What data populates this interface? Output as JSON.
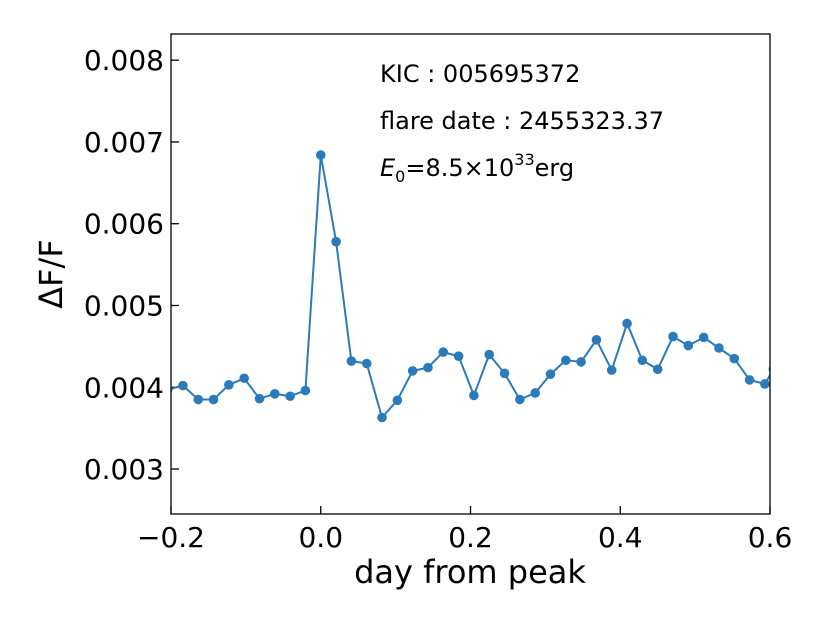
{
  "chart_data": {
    "type": "line",
    "xlabel": "day from peak",
    "ylabel": "ΔF/F",
    "xlim": [
      -0.2,
      0.6
    ],
    "ylim": [
      0.00245,
      0.00832
    ],
    "xticks": [
      -0.2,
      0.0,
      0.2,
      0.4,
      0.6
    ],
    "xtick_labels": [
      "−0.2",
      "0.0",
      "0.2",
      "0.4",
      "0.6"
    ],
    "yticks": [
      0.003,
      0.004,
      0.005,
      0.006,
      0.007,
      0.008
    ],
    "ytick_labels": [
      "0.003",
      "0.004",
      "0.005",
      "0.006",
      "0.007",
      "0.008"
    ],
    "grid": false,
    "color": "#2b7bba",
    "annotations": {
      "kic": "KIC : 005695372",
      "flare_date": "flare date : 2455323.37",
      "energy_symbol": "E",
      "energy_subscript": "0",
      "energy_value": "=8.5×10",
      "energy_exponent": "33",
      "energy_unit": "erg"
    },
    "series": [
      {
        "x": [
          -0.2045,
          -0.1841,
          -0.1636,
          -0.1432,
          -0.1227,
          -0.1023,
          -0.0818,
          -0.0614,
          -0.0409,
          -0.0205,
          0.0,
          0.0205,
          0.0409,
          0.0614,
          0.0818,
          0.1023,
          0.1227,
          0.1432,
          0.1636,
          0.1841,
          0.2045,
          0.225,
          0.2455,
          0.2659,
          0.2864,
          0.3068,
          0.3273,
          0.3477,
          0.3682,
          0.3886,
          0.4091,
          0.4295,
          0.45,
          0.4705,
          0.4909,
          0.5114,
          0.5318,
          0.5523,
          0.5727,
          0.5932,
          0.6045
        ],
        "y": [
          0.00397,
          0.00402,
          0.00385,
          0.00385,
          0.00403,
          0.00411,
          0.00386,
          0.00392,
          0.00389,
          0.00396,
          0.00684,
          0.00578,
          0.00432,
          0.00429,
          0.00363,
          0.00384,
          0.0042,
          0.00424,
          0.00443,
          0.00438,
          0.0039,
          0.0044,
          0.00417,
          0.00385,
          0.00393,
          0.00416,
          0.00433,
          0.00431,
          0.00458,
          0.00421,
          0.00478,
          0.00433,
          0.00422,
          0.00462,
          0.00451,
          0.00461,
          0.00448,
          0.00435,
          0.00409,
          0.00404,
          0.00422
        ]
      }
    ]
  }
}
